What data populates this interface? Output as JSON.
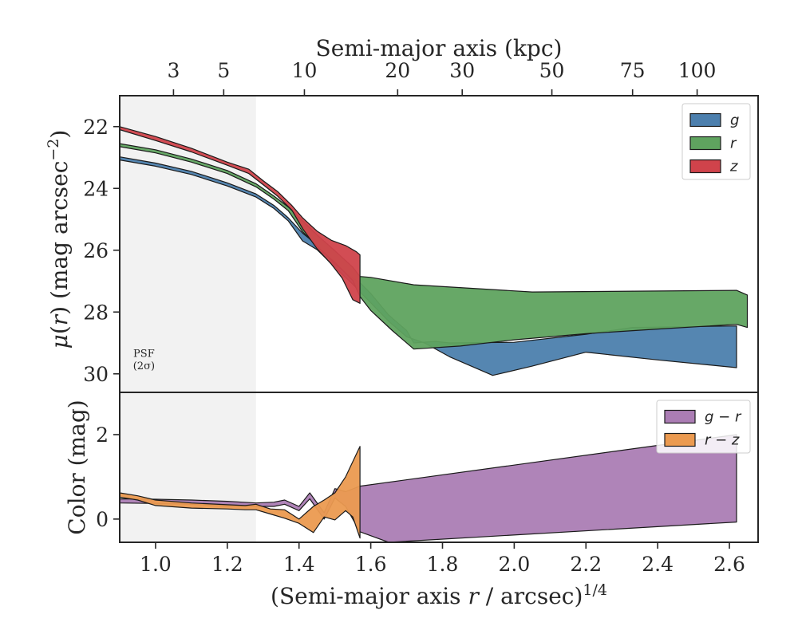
{
  "chart_data": [
    {
      "type": "area",
      "panel": "surface-brightness",
      "title": "",
      "xlabel": "(Semi-major axis r / arcsec)^1/4",
      "ylabel": "μ(r) (mag arcsec^-2)",
      "xlim": [
        0.9,
        2.68
      ],
      "ylim": [
        30.6,
        21.0
      ],
      "y_inverted": true,
      "yticks": [
        22,
        24,
        26,
        28,
        30
      ],
      "legend_position": "top-right",
      "top_axis": {
        "label": "Semi-major axis (kpc)",
        "ticks": [
          "3",
          "5",
          "10",
          "20",
          "30",
          "50",
          "75",
          "100"
        ],
        "tick_x": [
          1.05,
          1.19,
          1.415,
          1.675,
          1.855,
          2.105,
          2.33,
          2.51
        ]
      },
      "psf_region": {
        "x_end": 1.28,
        "label_line1": "PSF",
        "label_line2": "(2σ)"
      },
      "series": [
        {
          "name": "g",
          "color": "#4c7fad",
          "upper": [
            [
              0.9,
              22.98
            ],
            [
              1.0,
              23.18
            ],
            [
              1.1,
              23.45
            ],
            [
              1.2,
              23.82
            ],
            [
              1.28,
              24.18
            ],
            [
              1.33,
              24.55
            ],
            [
              1.37,
              24.95
            ],
            [
              1.41,
              25.45
            ],
            [
              1.45,
              25.82
            ],
            [
              1.5,
              26.45
            ],
            [
              1.55,
              26.9
            ],
            [
              1.57,
              27.05
            ],
            [
              1.6,
              27.4
            ],
            [
              1.65,
              28.1
            ],
            [
              1.7,
              28.6
            ],
            [
              1.72,
              29.0
            ],
            [
              1.78,
              28.95
            ],
            [
              1.82,
              29.0
            ],
            [
              2.0,
              28.98
            ],
            [
              2.2,
              28.72
            ],
            [
              2.33,
              28.5
            ],
            [
              2.62,
              28.45
            ]
          ],
          "lower": [
            [
              0.9,
              23.08
            ],
            [
              1.0,
              23.28
            ],
            [
              1.1,
              23.55
            ],
            [
              1.2,
              23.92
            ],
            [
              1.28,
              24.28
            ],
            [
              1.33,
              24.65
            ],
            [
              1.37,
              25.05
            ],
            [
              1.41,
              25.7
            ],
            [
              1.45,
              25.98
            ],
            [
              1.5,
              26.55
            ],
            [
              1.55,
              27.1
            ],
            [
              1.57,
              27.35
            ],
            [
              1.6,
              27.7
            ],
            [
              1.65,
              28.3
            ],
            [
              1.7,
              28.8
            ],
            [
              1.75,
              29.0
            ],
            [
              1.82,
              29.45
            ],
            [
              1.94,
              30.05
            ],
            [
              2.05,
              29.75
            ],
            [
              2.2,
              29.3
            ],
            [
              2.4,
              29.55
            ],
            [
              2.62,
              29.8
            ]
          ]
        },
        {
          "name": "r",
          "color": "#5fa35f",
          "upper": [
            [
              0.9,
              22.55
            ],
            [
              1.0,
              22.75
            ],
            [
              1.1,
              23.05
            ],
            [
              1.2,
              23.42
            ],
            [
              1.28,
              23.85
            ],
            [
              1.33,
              24.25
            ],
            [
              1.37,
              24.6
            ],
            [
              1.41,
              25.05
            ],
            [
              1.45,
              25.5
            ],
            [
              1.5,
              26.02
            ],
            [
              1.55,
              26.55
            ],
            [
              1.57,
              26.85
            ],
            [
              1.6,
              26.88
            ],
            [
              1.72,
              27.12
            ],
            [
              2.05,
              27.35
            ],
            [
              2.62,
              27.3
            ],
            [
              2.65,
              27.45
            ]
          ],
          "lower": [
            [
              0.9,
              22.65
            ],
            [
              1.0,
              22.85
            ],
            [
              1.1,
              23.15
            ],
            [
              1.2,
              23.52
            ],
            [
              1.28,
              23.95
            ],
            [
              1.33,
              24.35
            ],
            [
              1.37,
              24.72
            ],
            [
              1.41,
              25.4
            ],
            [
              1.45,
              25.88
            ],
            [
              1.5,
              26.4
            ],
            [
              1.55,
              26.98
            ],
            [
              1.57,
              27.5
            ],
            [
              1.6,
              27.95
            ],
            [
              1.66,
              28.6
            ],
            [
              1.72,
              29.2
            ],
            [
              1.85,
              29.1
            ],
            [
              2.0,
              28.9
            ],
            [
              2.2,
              28.7
            ],
            [
              2.4,
              28.55
            ],
            [
              2.62,
              28.4
            ],
            [
              2.65,
              28.5
            ]
          ]
        },
        {
          "name": "z",
          "color": "#d0434b",
          "upper": [
            [
              0.9,
              22.0
            ],
            [
              1.0,
              22.32
            ],
            [
              1.1,
              22.7
            ],
            [
              1.2,
              23.15
            ],
            [
              1.26,
              23.38
            ],
            [
              1.3,
              23.75
            ],
            [
              1.34,
              24.1
            ],
            [
              1.38,
              24.55
            ],
            [
              1.41,
              24.95
            ],
            [
              1.45,
              25.38
            ],
            [
              1.49,
              25.68
            ],
            [
              1.53,
              25.85
            ],
            [
              1.56,
              26.05
            ],
            [
              1.57,
              26.15
            ]
          ],
          "lower": [
            [
              0.9,
              22.1
            ],
            [
              1.0,
              22.45
            ],
            [
              1.1,
              22.82
            ],
            [
              1.2,
              23.25
            ],
            [
              1.26,
              23.52
            ],
            [
              1.3,
              23.88
            ],
            [
              1.34,
              24.25
            ],
            [
              1.38,
              24.7
            ],
            [
              1.41,
              25.3
            ],
            [
              1.45,
              25.95
            ],
            [
              1.49,
              26.45
            ],
            [
              1.52,
              26.9
            ],
            [
              1.55,
              27.6
            ],
            [
              1.57,
              27.72
            ]
          ]
        }
      ]
    },
    {
      "type": "area",
      "panel": "color",
      "title": "",
      "xlabel": "(Semi-major axis r / arcsec)^1/4",
      "ylabel": "Color (mag)",
      "xlim": [
        0.9,
        2.68
      ],
      "ylim": [
        -0.55,
        3.0
      ],
      "yticks": [
        0,
        2
      ],
      "xticks": [
        1.0,
        1.2,
        1.4,
        1.6,
        1.8,
        2.0,
        2.2,
        2.4,
        2.6
      ],
      "xtick_labels": [
        "1.0",
        "1.2",
        "1.4",
        "1.6",
        "1.8",
        "2.0",
        "2.2",
        "2.4",
        "2.6"
      ],
      "legend_position": "top-right",
      "series": [
        {
          "name": "g − r",
          "color": "#ab7db4",
          "upper": [
            [
              0.9,
              0.48
            ],
            [
              1.0,
              0.47
            ],
            [
              1.1,
              0.45
            ],
            [
              1.2,
              0.42
            ],
            [
              1.28,
              0.38
            ],
            [
              1.33,
              0.4
            ],
            [
              1.36,
              0.45
            ],
            [
              1.4,
              0.3
            ],
            [
              1.43,
              0.62
            ],
            [
              1.47,
              0.15
            ],
            [
              1.5,
              0.72
            ],
            [
              1.53,
              0.65
            ],
            [
              1.57,
              0.78
            ],
            [
              2.62,
              2.0
            ]
          ],
          "lower": [
            [
              0.9,
              0.38
            ],
            [
              1.0,
              0.37
            ],
            [
              1.1,
              0.35
            ],
            [
              1.2,
              0.3
            ],
            [
              1.28,
              0.3
            ],
            [
              1.33,
              0.3
            ],
            [
              1.36,
              0.35
            ],
            [
              1.4,
              0.2
            ],
            [
              1.43,
              0.48
            ],
            [
              1.47,
              0.0
            ],
            [
              1.5,
              0.5
            ],
            [
              1.53,
              0.3
            ],
            [
              1.57,
              -0.3
            ],
            [
              1.65,
              -0.55
            ],
            [
              2.62,
              -0.07
            ]
          ]
        },
        {
          "name": "r − z",
          "color": "#eb9a50",
          "upper": [
            [
              0.9,
              0.62
            ],
            [
              0.95,
              0.55
            ],
            [
              1.0,
              0.45
            ],
            [
              1.1,
              0.38
            ],
            [
              1.2,
              0.34
            ],
            [
              1.25,
              0.32
            ],
            [
              1.28,
              0.35
            ],
            [
              1.32,
              0.24
            ],
            [
              1.36,
              0.22
            ],
            [
              1.4,
              0.0
            ],
            [
              1.44,
              0.3
            ],
            [
              1.47,
              0.45
            ],
            [
              1.5,
              0.62
            ],
            [
              1.53,
              1.0
            ],
            [
              1.57,
              1.72
            ]
          ],
          "lower": [
            [
              0.9,
              0.52
            ],
            [
              0.95,
              0.45
            ],
            [
              1.0,
              0.32
            ],
            [
              1.1,
              0.26
            ],
            [
              1.2,
              0.24
            ],
            [
              1.25,
              0.22
            ],
            [
              1.28,
              0.22
            ],
            [
              1.32,
              0.12
            ],
            [
              1.36,
              0.02
            ],
            [
              1.4,
              -0.1
            ],
            [
              1.44,
              -0.32
            ],
            [
              1.47,
              0.05
            ],
            [
              1.5,
              -0.02
            ],
            [
              1.53,
              0.2
            ],
            [
              1.55,
              0.05
            ],
            [
              1.57,
              -0.45
            ]
          ]
        }
      ]
    }
  ]
}
